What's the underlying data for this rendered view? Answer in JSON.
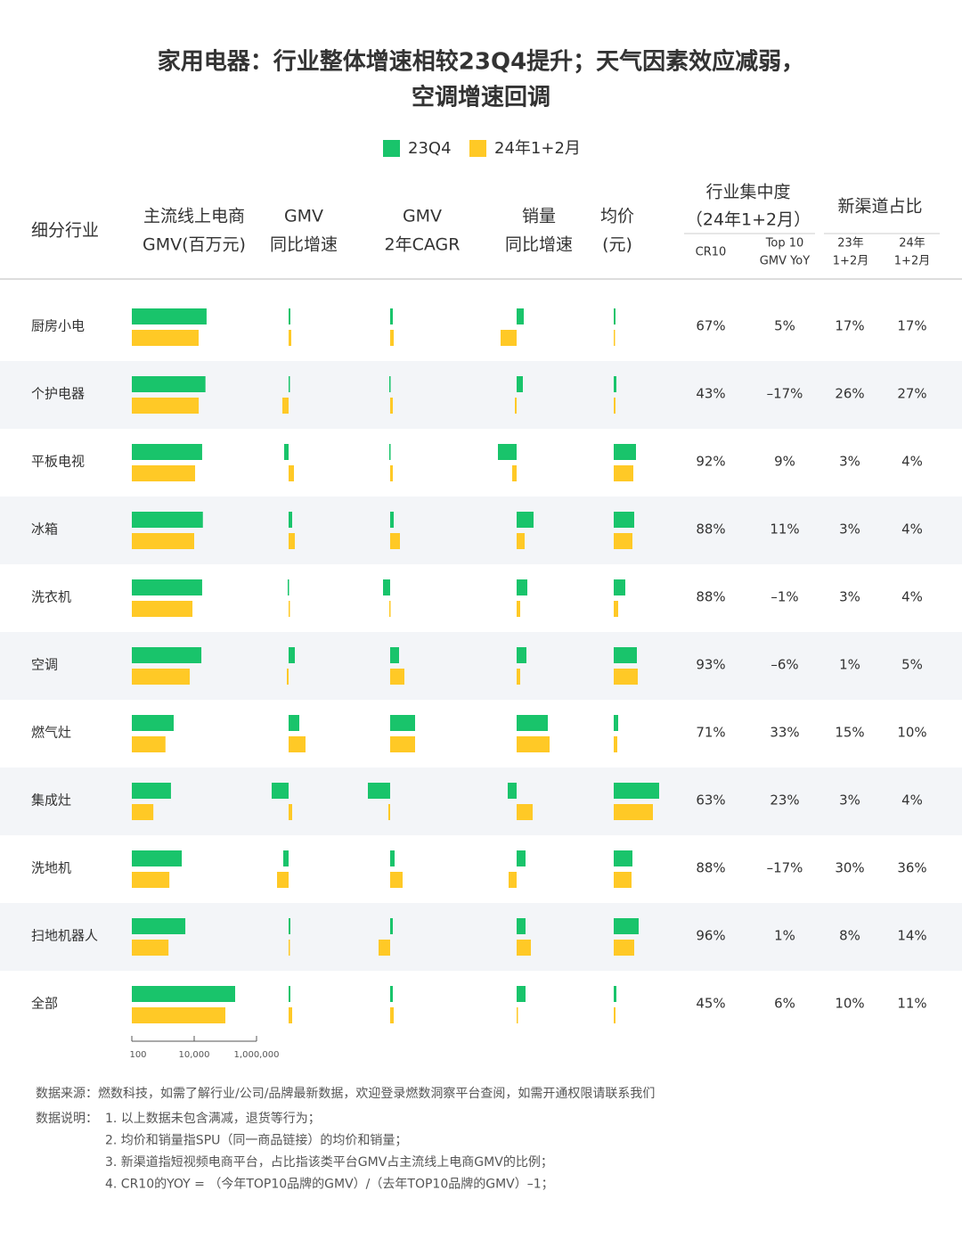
{
  "chart_data": {
    "type": "bar_table",
    "title_lines": [
      "家用电器：行业整体增速相较23Q4提升；天气因素效应减弱，",
      "空调增速回调"
    ],
    "series": [
      {
        "name": "23Q4",
        "color": "#19c46b"
      },
      {
        "name": "24年1+2月",
        "color": "#ffc926"
      }
    ],
    "headers": {
      "segment": "细分行业",
      "gmv": [
        "主流线上电商",
        "GMV(百万元)"
      ],
      "gmv_yoy": [
        "GMV",
        "同比增速"
      ],
      "cagr": [
        "GMV",
        "2年CAGR"
      ],
      "volume_yoy": [
        "销量",
        "同比增速"
      ],
      "price": [
        "均价",
        "(元)"
      ],
      "concentration": [
        "行业集中度",
        "（24年1+2月）"
      ],
      "cr10": "CR10",
      "top10": [
        "Top 10",
        "GMV YoY"
      ],
      "new_channel": "新渠道占比",
      "nc23": [
        "23年",
        "1+2月"
      ],
      "nc24": [
        "24年",
        "1+2月"
      ]
    },
    "categories": [
      "厨房小电",
      "个护电器",
      "平板电视",
      "冰箱",
      "洗衣机",
      "空调",
      "燃气灶",
      "集成灶",
      "洗地机",
      "扫地机器人",
      "全部"
    ],
    "gmv": {
      "log": true,
      "xlim": [
        100,
        1000000
      ],
      "xticks": [
        100,
        {
          "value": 10000,
          "label": "10,000"
        },
        {
          "value": 1000000,
          "label": "1,000,000"
        }
      ],
      "values": [
        [
          25000,
          23000,
          18000,
          19000,
          18000,
          17000,
          2200,
          1800,
          4000,
          5200,
          206000
        ],
        [
          13900,
          14000,
          10700,
          10000,
          8800,
          7200,
          1200,
          490,
          1600,
          1500,
          100000
        ]
      ]
    },
    "gmv_yoy": {
      "xlim": [
        -40,
        60
      ],
      "values": [
        [
          2,
          1,
          -5,
          4,
          -1,
          7,
          12,
          -19,
          -6,
          2,
          2
        ],
        [
          3,
          -7,
          6,
          7,
          0,
          -2,
          19,
          4,
          -13,
          1,
          4
        ]
      ]
    },
    "cagr": {
      "xlim": [
        -40,
        60
      ],
      "values": [
        [
          3,
          -1,
          -1,
          4,
          -8,
          10,
          28,
          -25,
          5,
          3,
          3
        ],
        [
          4,
          3,
          3,
          11,
          -1,
          16,
          28,
          -2,
          14,
          -13,
          4
        ]
      ]
    },
    "volume_yoy": {
      "xlim": [
        -40,
        60
      ],
      "values": [
        [
          8,
          7,
          -21,
          19,
          12,
          11,
          35,
          -10,
          10,
          10,
          10
        ],
        [
          -18,
          -2,
          -5,
          9,
          4,
          4,
          37,
          18,
          -9,
          16,
          1
        ]
      ]
    },
    "price": {
      "xlim": [
        -40,
        60
      ],
      "values": [
        [
          2,
          3,
          25,
          23,
          13,
          26,
          5,
          51,
          21,
          28,
          3
        ],
        [
          1,
          2,
          22,
          21,
          5,
          27,
          4,
          44,
          20,
          23,
          2
        ]
      ]
    },
    "cr10": [
      "67%",
      "43%",
      "92%",
      "88%",
      "88%",
      "93%",
      "71%",
      "63%",
      "88%",
      "96%",
      "45%"
    ],
    "top10_yoy": [
      "5%",
      "–17%",
      "9%",
      "11%",
      "–1%",
      "–6%",
      "33%",
      "23%",
      "–17%",
      "1%",
      "6%"
    ],
    "nc23": [
      "17%",
      "26%",
      "3%",
      "3%",
      "3%",
      "1%",
      "15%",
      "3%",
      "30%",
      "8%",
      "10%"
    ],
    "nc24": [
      "17%",
      "27%",
      "4%",
      "4%",
      "4%",
      "5%",
      "10%",
      "4%",
      "36%",
      "14%",
      "11%"
    ],
    "notes": {
      "source": "数据来源：燃数科技，如需了解行业/公司/品牌最新数据，欢迎登录燃数洞察平台查阅，如需开通权限请联系我们",
      "explain_label": "数据说明：",
      "explain": [
        "1. 以上数据未包含满减，退货等行为；",
        "2. 均价和销量指SPU（同一商品链接）的均价和销量；",
        "3. 新渠道指短视频电商平台，占比指该类平台GMV占主流线上电商GMV的比例；",
        "4. CR10的YOY = （今年TOP10品牌的GMV）/（去年TOP10品牌的GMV）–1；"
      ]
    }
  }
}
